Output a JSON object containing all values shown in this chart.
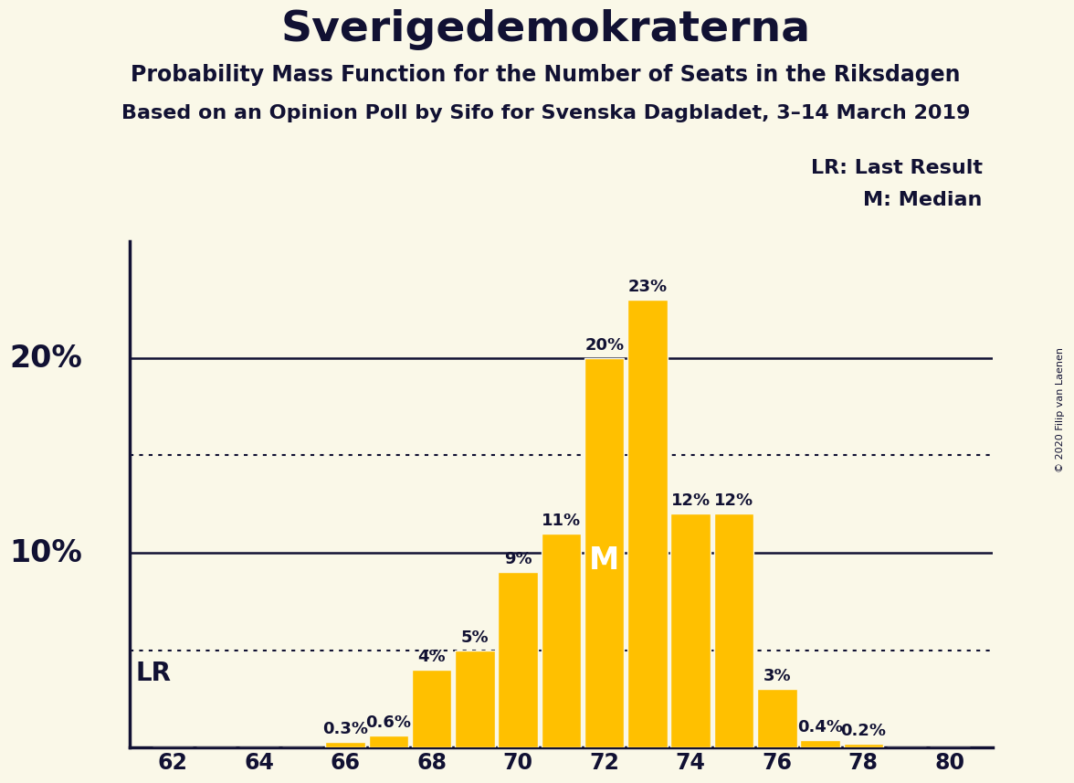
{
  "title": "Sverigedemokraterna",
  "subtitle1": "Probability Mass Function for the Number of Seats in the Riksdagen",
  "subtitle2": "Based on an Opinion Poll by Sifo for Svenska Dagbladet, 3–14 March 2019",
  "copyright": "© 2020 Filip van Laenen",
  "seats": [
    62,
    63,
    64,
    65,
    66,
    67,
    68,
    69,
    70,
    71,
    72,
    73,
    74,
    75,
    76,
    77,
    78,
    79,
    80
  ],
  "probabilities": [
    0.0,
    0.0,
    0.0,
    0.0,
    0.3,
    0.6,
    4.0,
    5.0,
    9.0,
    11.0,
    20.0,
    23.0,
    12.0,
    12.0,
    3.0,
    0.4,
    0.2,
    0.0,
    0.0
  ],
  "bar_color": "#FFC000",
  "background_color": "#FAF8E8",
  "text_color": "#111133",
  "bar_edge_color": "#FAF8E8",
  "median_seat": 72,
  "lr_y": 3.8,
  "dotted_lines": [
    5.0,
    15.0
  ],
  "solid_lines": [
    10.0,
    20.0
  ],
  "xlim": [
    61.0,
    81.0
  ],
  "ylim": [
    0,
    26
  ],
  "xlabel_ticks": [
    62,
    64,
    66,
    68,
    70,
    72,
    74,
    76,
    78,
    80
  ],
  "ylabel_ticks": [
    10,
    20
  ],
  "ylabel_labels": [
    "10%",
    "20%"
  ],
  "title_fontsize": 34,
  "subtitle1_fontsize": 17,
  "subtitle2_fontsize": 16,
  "legend_fontsize": 16,
  "bar_label_fontsize": 13,
  "tick_fontsize": 17,
  "ytick_fontsize": 24,
  "lr_fontsize": 20,
  "M_fontsize": 24
}
